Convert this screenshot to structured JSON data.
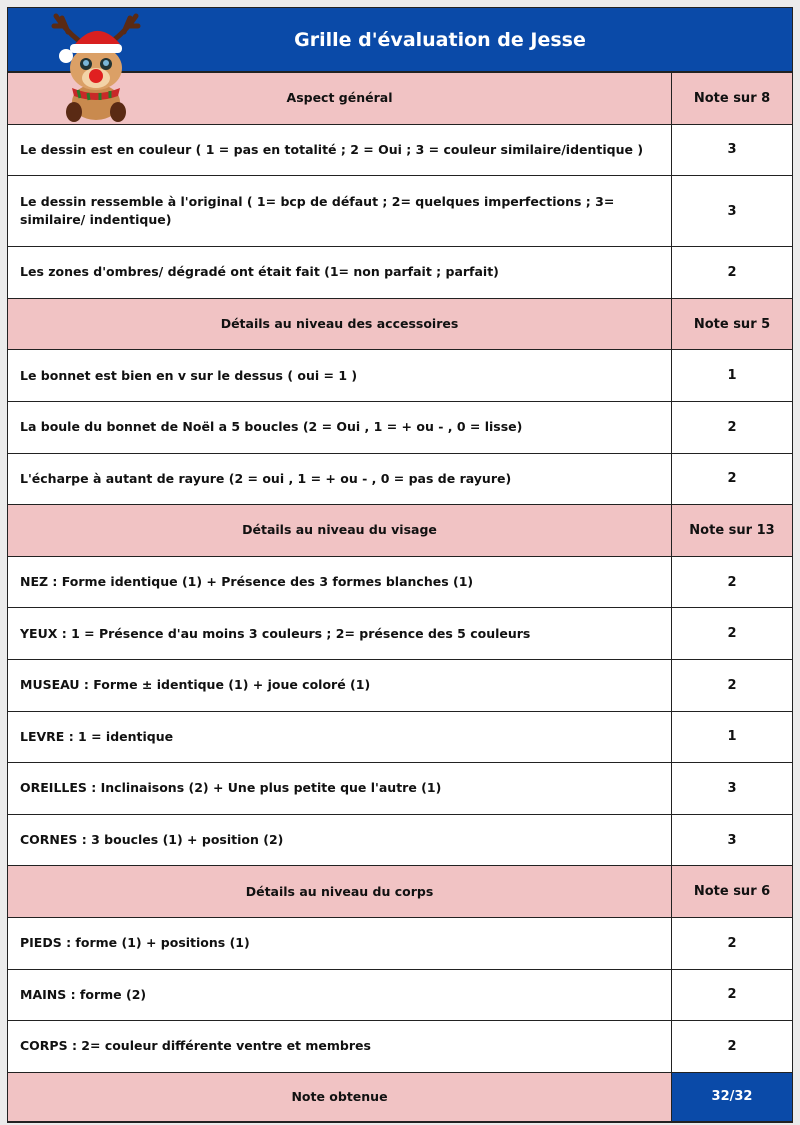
{
  "title": "Grille d'évaluation de Jesse",
  "sections": [
    {
      "label": "Aspect général",
      "note": "Note sur 8",
      "rows": [
        {
          "label": "Le dessin est en couleur ( 1 = pas en totalité ; 2 = Oui ; 3 = couleur similaire/identique )",
          "score": "3"
        },
        {
          "label": "Le dessin ressemble à l'original ( 1= bcp de défaut ; 2= quelques imperfections ; 3= similaire/ indentique)",
          "score": "3"
        },
        {
          "label": "Les zones d'ombres/ dégradé ont était fait (1= non parfait ; parfait)",
          "score": "2"
        }
      ]
    },
    {
      "label": "Détails au niveau des accessoires",
      "note": "Note sur 5",
      "rows": [
        {
          "label": "Le bonnet est bien en v sur le dessus ( oui = 1 )",
          "score": "1"
        },
        {
          "label": "La boule du bonnet de Noël a 5 boucles (2 = Oui , 1 = + ou - , 0 = lisse)",
          "score": "2"
        },
        {
          "label": "L'écharpe à autant de rayure (2 = oui , 1 = + ou - , 0 = pas de rayure)",
          "score": "2"
        }
      ]
    },
    {
      "label": "Détails au niveau du visage",
      "note": "Note sur 13",
      "rows": [
        {
          "label": "NEZ : Forme identique (1) + Présence des 3 formes blanches (1)",
          "score": "2"
        },
        {
          "label": "YEUX : 1 =  Présence d'au moins 3 couleurs ; 2= présence des 5 couleurs",
          "score": "2"
        },
        {
          "label": "MUSEAU : Forme ± identique (1) + joue coloré (1)",
          "score": "2"
        },
        {
          "label": "LEVRE : 1 = identique",
          "score": "1"
        },
        {
          "label": "OREILLES : Inclinaisons (2) + Une plus petite que l'autre (1)",
          "score": "3"
        },
        {
          "label": "CORNES : 3 boucles (1) + position (2)",
          "score": "3"
        }
      ]
    },
    {
      "label": "Détails au niveau du corps",
      "note": "Note sur 6",
      "rows": [
        {
          "label": "PIEDS : forme (1) + positions (1)",
          "score": "2"
        },
        {
          "label": "MAINS : forme (2)",
          "score": "2"
        },
        {
          "label": "CORPS : 2= couleur différente ventre et membres",
          "score": "2"
        }
      ]
    }
  ],
  "total": {
    "label": "Note obtenue",
    "score": "32/32"
  },
  "colors": {
    "header": "#0a4aa8",
    "section": "#f1c3c4"
  }
}
